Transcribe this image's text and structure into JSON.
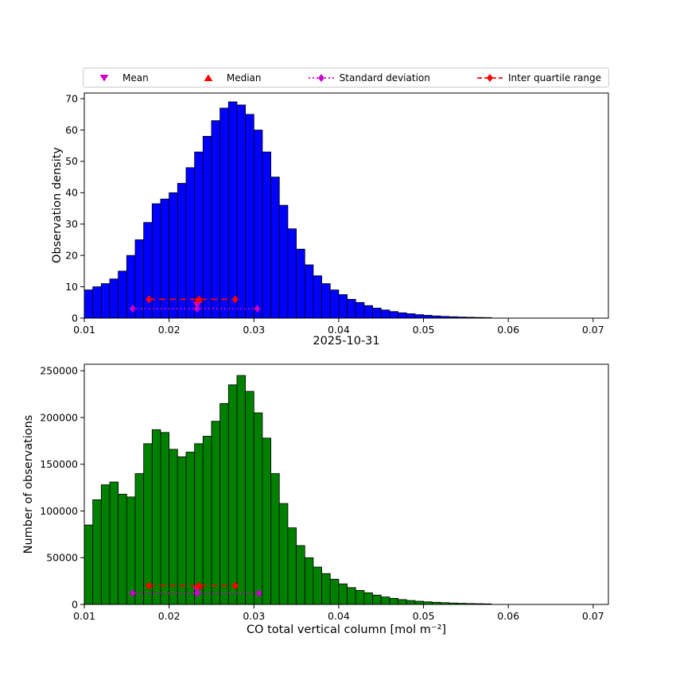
{
  "figure": {
    "title": "2025-10-31",
    "xlabel": "CO total vertical column [mol m⁻²]",
    "legend": [
      {
        "label": "Mean",
        "marker": "triangle-down",
        "color": "#cc00cc",
        "line": "none"
      },
      {
        "label": "Median",
        "marker": "triangle-up",
        "color": "#ff0000",
        "line": "none"
      },
      {
        "label": "Standard deviation",
        "marker": "diamond",
        "color": "#cc00cc",
        "line": "dotted"
      },
      {
        "label": "Inter quartile range",
        "marker": "diamond",
        "color": "#ff0000",
        "line": "dashed"
      }
    ],
    "colors": {
      "top_bar": "#0000ff",
      "bottom_bar": "#008000",
      "bar_edge": "#000000",
      "magenta": "#cc00cc",
      "red": "#ff0000"
    }
  },
  "chart_data": [
    {
      "type": "bar",
      "name": "observation-density-histogram",
      "title": "",
      "ylabel": "Observation density",
      "xlabel": "2025-10-31",
      "xlim": [
        0.01,
        0.0718
      ],
      "ylim": [
        0,
        71.8
      ],
      "xticks": [
        0.01,
        0.02,
        0.03,
        0.04,
        0.05,
        0.06,
        0.07
      ],
      "yticks": [
        0,
        10,
        20,
        30,
        40,
        50,
        60,
        70
      ],
      "bar_color": "#0000ff",
      "x_start": 0.01,
      "bin_width": 0.001,
      "values": [
        9,
        10,
        11,
        12.5,
        15,
        20,
        25,
        30.5,
        36.5,
        38,
        40,
        43,
        48,
        53,
        58,
        63,
        67,
        69,
        68,
        65,
        60,
        53,
        45,
        36,
        28.5,
        22,
        17,
        13.5,
        11,
        9,
        7.5,
        6,
        5,
        4,
        3.2,
        2.6,
        2.1,
        1.7,
        1.4,
        1.1,
        0.9,
        0.7,
        0.55,
        0.45,
        0.35,
        0.28,
        0.22,
        0.18
      ],
      "stats": {
        "mean": 0.0233,
        "median": 0.0235,
        "std_low": 0.0157,
        "std_high": 0.0304,
        "q1": 0.0176,
        "q3": 0.0278,
        "std_y": 3,
        "iqr_y": 6,
        "mean_y": 4.2,
        "median_y": 6
      }
    },
    {
      "type": "bar",
      "name": "number-of-observations-histogram",
      "title": "",
      "ylabel": "Number of observations",
      "xlabel": "CO total vertical column [mol m⁻²]",
      "xlim": [
        0.01,
        0.0718
      ],
      "ylim": [
        0,
        257000
      ],
      "xticks": [
        0.01,
        0.02,
        0.03,
        0.04,
        0.05,
        0.06,
        0.07
      ],
      "yticks": [
        0,
        50000,
        100000,
        150000,
        200000,
        250000
      ],
      "bar_color": "#008000",
      "x_start": 0.01,
      "bin_width": 0.001,
      "values": [
        85000,
        112000,
        128000,
        131000,
        118000,
        115000,
        140000,
        172000,
        187000,
        184000,
        166000,
        158000,
        163000,
        172000,
        180000,
        196000,
        215000,
        235000,
        245000,
        228000,
        205000,
        178000,
        140000,
        108000,
        82000,
        63000,
        50000,
        40000,
        33000,
        27000,
        22000,
        18000,
        15000,
        12500,
        10000,
        8000,
        6500,
        5200,
        4200,
        3400,
        2800,
        2300,
        1900,
        1500,
        1200,
        1000,
        800,
        650
      ],
      "stats": {
        "mean": 0.0233,
        "median": 0.0235,
        "std_low": 0.0157,
        "std_high": 0.0306,
        "q1": 0.0176,
        "q3": 0.0278,
        "std_y": 12000,
        "iqr_y": 20000,
        "mean_y": 15500,
        "median_y": 20000
      }
    }
  ]
}
